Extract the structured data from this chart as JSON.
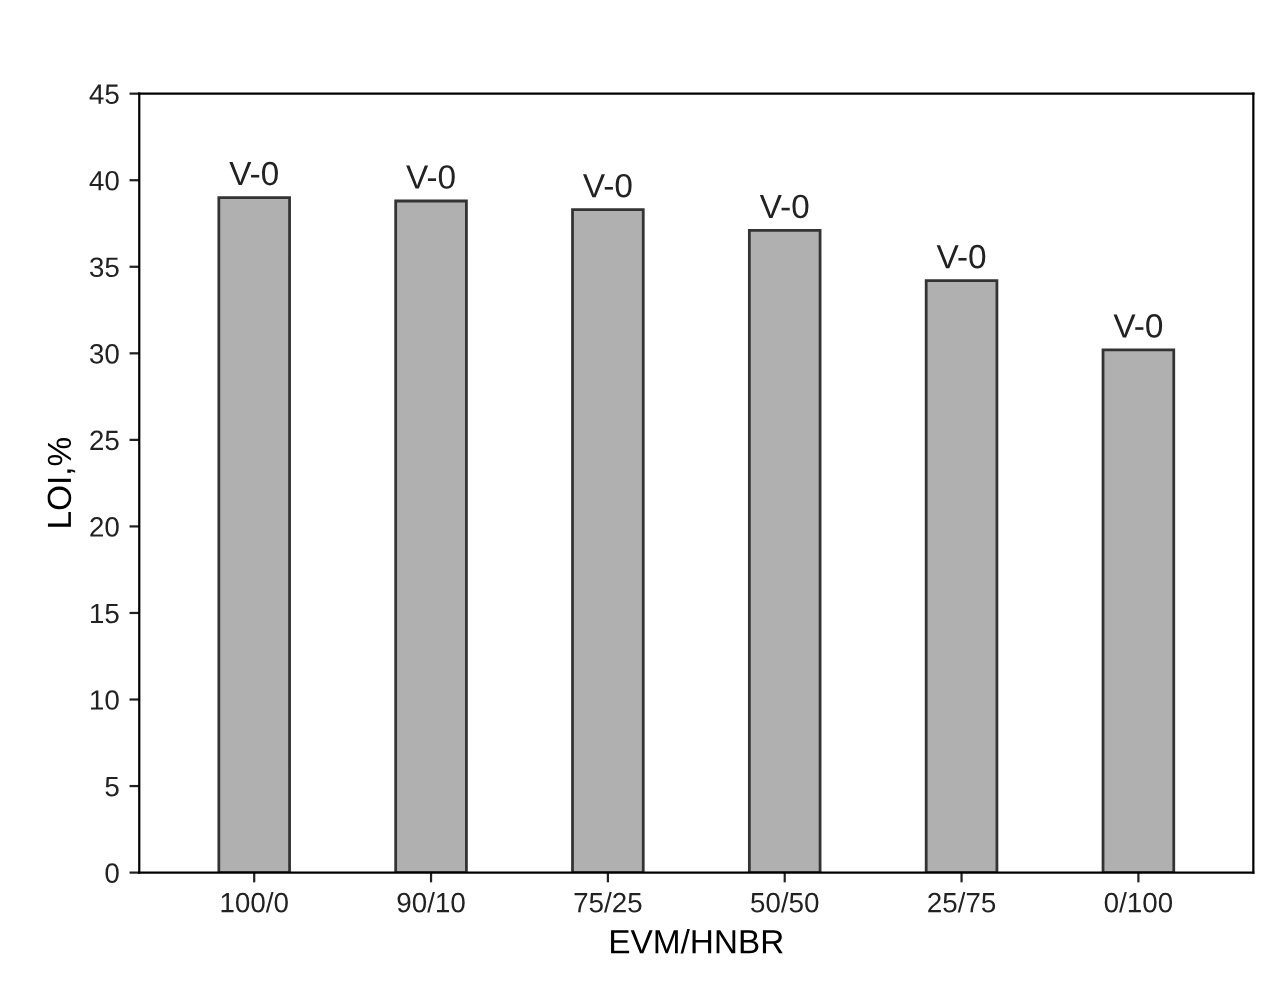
{
  "chart_data": {
    "type": "bar",
    "xlabel": "EVM/HNBR",
    "ylabel": "LOI,%",
    "categories": [
      "100/0",
      "90/10",
      "75/25",
      "50/50",
      "25/75",
      "0/100"
    ],
    "values": [
      39.0,
      38.8,
      38.3,
      37.1,
      34.2,
      30.2
    ],
    "value_labels": [
      "V-0",
      "V-0",
      "V-0",
      "V-0",
      "V-0",
      "V-0"
    ],
    "color": "#b0b0b0",
    "ylim": [
      0,
      45
    ],
    "yticks": [
      0,
      5,
      10,
      15,
      20,
      25,
      30,
      35,
      40,
      45
    ],
    "grid": false
  }
}
